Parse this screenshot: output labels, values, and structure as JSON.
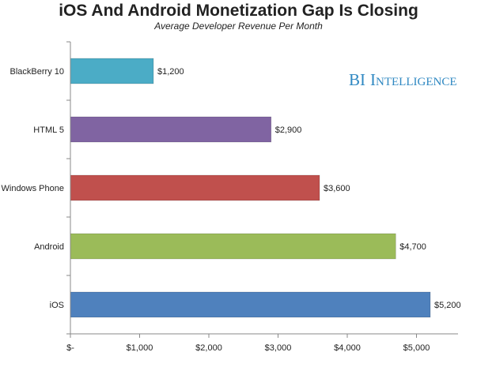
{
  "chart_data": {
    "type": "bar",
    "orientation": "horizontal",
    "title": "iOS And Android Monetization Gap Is Closing",
    "subtitle": "Average Developer Revenue Per Month",
    "categories": [
      "BlackBerry 10",
      "HTML 5",
      "Windows Phone",
      "Android",
      "iOS"
    ],
    "values": [
      1200,
      2900,
      3600,
      4700,
      5200
    ],
    "data_labels": [
      "$1,200",
      "$2,900",
      "$3,600",
      "$4,700",
      "$5,200"
    ],
    "colors": [
      "#4bacc6",
      "#8064a2",
      "#c0504d",
      "#9bbb59",
      "#4f81bd"
    ],
    "xlim": [
      0,
      5600
    ],
    "x_ticks": [
      0,
      1000,
      2000,
      3000,
      4000,
      5000
    ],
    "x_tick_labels": [
      "$-",
      "$1,000",
      "$2,000",
      "$3,000",
      "$4,000",
      "$5,000"
    ],
    "grid": false,
    "legend": "none"
  },
  "branding": {
    "logo_text_big_b": "B",
    "logo_text_big_i": "I",
    "logo_text_i": "I",
    "logo_text_rest": "NTELLIGENCE"
  }
}
